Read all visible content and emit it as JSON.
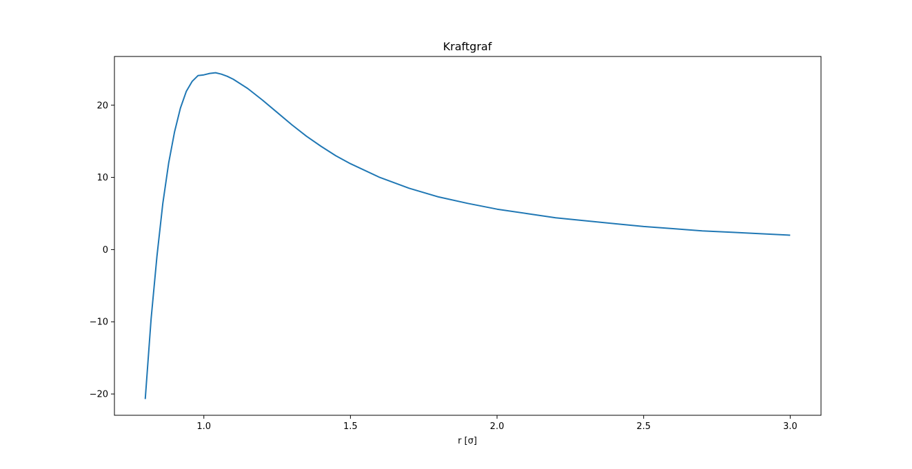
{
  "chart_data": {
    "type": "line",
    "title": "Kraftgraf",
    "xlabel": "r [σ]",
    "ylabel": "",
    "xlim": [
      0.695,
      3.105
    ],
    "ylim": [
      -22.95,
      26.75
    ],
    "grid": false,
    "legend": "none",
    "x_ticks": [
      1.0,
      1.5,
      2.0,
      2.5,
      3.0
    ],
    "x_tick_labels": [
      "1.0",
      "1.5",
      "2.0",
      "2.5",
      "3.0"
    ],
    "y_ticks": [
      -20,
      -10,
      0,
      10,
      20
    ],
    "y_tick_labels": [
      "−20",
      "−10",
      "0",
      "10",
      "20"
    ],
    "series": [
      {
        "name": "",
        "color": "#1f77b4",
        "x": [
          0.8,
          0.82,
          0.84,
          0.86,
          0.88,
          0.9,
          0.92,
          0.94,
          0.96,
          0.98,
          1.0,
          1.02,
          1.04,
          1.06,
          1.08,
          1.1,
          1.15,
          1.2,
          1.25,
          1.3,
          1.35,
          1.4,
          1.45,
          1.5,
          1.6,
          1.7,
          1.8,
          1.9,
          2.0,
          2.1,
          2.2,
          2.3,
          2.4,
          2.5,
          2.6,
          2.7,
          2.8,
          2.9,
          3.0
        ],
        "y": [
          -20.7,
          -9.6,
          -0.9,
          6.4,
          12.0,
          16.3,
          19.6,
          21.9,
          23.3,
          24.1,
          24.2,
          24.4,
          24.5,
          24.3,
          24.0,
          23.6,
          22.3,
          20.7,
          19.0,
          17.3,
          15.7,
          14.3,
          13.0,
          11.9,
          10.0,
          8.5,
          7.3,
          6.4,
          5.6,
          5.0,
          4.4,
          4.0,
          3.6,
          3.2,
          2.9,
          2.6,
          2.4,
          2.2,
          2.0
        ]
      }
    ]
  }
}
